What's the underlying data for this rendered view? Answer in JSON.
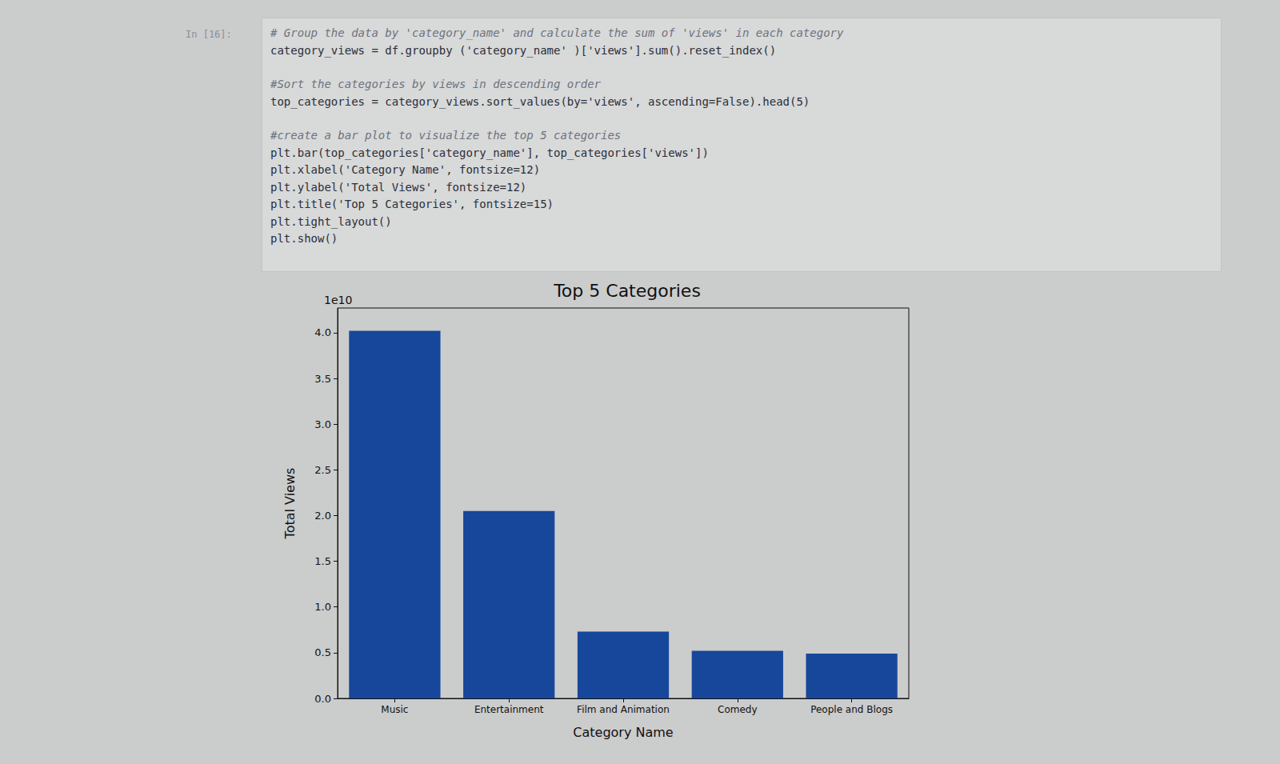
{
  "cell": {
    "prompt": "In [16]:",
    "code_blocks": [
      [
        "# Group the data by 'category_name' and calculate the sum of 'views' in each category",
        "category_views = df.groupby ('category_name' )['views'].sum().reset_index()"
      ],
      [
        "#Sort the categories by views in descending order",
        "top_categories = category_views.sort_values(by='views', ascending=False).head(5)"
      ],
      [
        "#create a bar plot to visualize the top 5 categories",
        "plt.bar(top_categories['category_name'], top_categories['views'])",
        "plt.xlabel('Category Name', fontsize=12)",
        "plt.ylabel('Total Views', fontsize=12)",
        "plt.title('Top 5 Categories', fontsize=15)",
        "plt.tight_layout()",
        "plt.show()"
      ]
    ]
  },
  "chart_data": {
    "type": "bar",
    "title": "Top 5 Categories",
    "x_label": "Category Name",
    "y_label": "Total Views",
    "y_offset_label": "1e10",
    "categories": [
      "Music",
      "Entertainment",
      "Film and Animation",
      "Comedy",
      "People and Blogs"
    ],
    "values": [
      4.02,
      2.05,
      0.73,
      0.52,
      0.49
    ],
    "color": "#17479a",
    "ylim": [
      0,
      4.27
    ],
    "yticks": [
      {
        "value": 0,
        "label": "0.0"
      },
      0.5,
      {
        "value": 1,
        "label": "1.0"
      },
      1.5,
      {
        "value": 2,
        "label": "2.0"
      },
      2.5,
      {
        "value": 3,
        "label": "3.0"
      },
      3.5,
      {
        "value": 4,
        "label": "4.0"
      }
    ],
    "grid": false
  }
}
